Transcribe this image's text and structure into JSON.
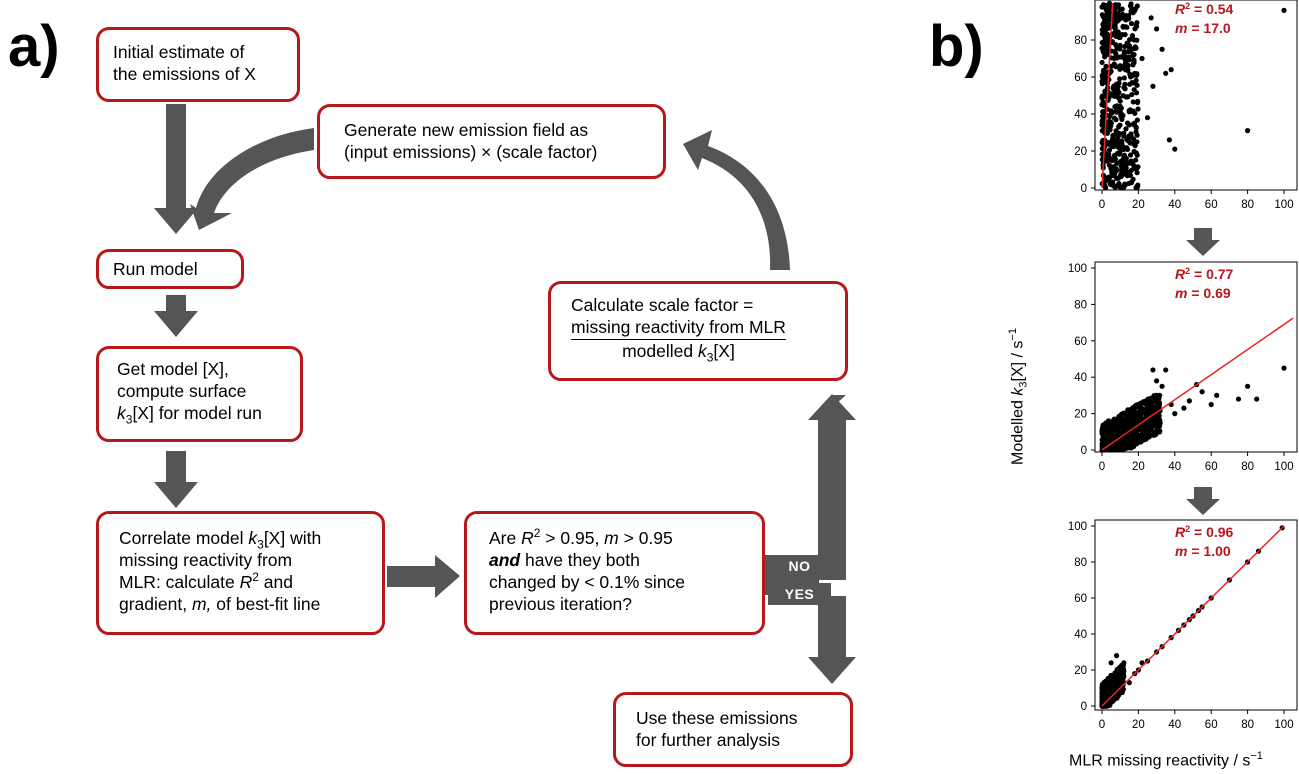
{
  "panels": {
    "a": "a)",
    "b": "b)"
  },
  "colors": {
    "box_border": "#b8171b",
    "arrow_fill": "#555555",
    "fit_line": "#e8261e",
    "points": "#000000"
  },
  "flowchart": {
    "initial": [
      "Initial estimate of",
      "the emissions of X"
    ],
    "generate": [
      "Generate new emission field as",
      "(input emissions) × (scale factor)"
    ],
    "run": "Run model",
    "getmodel": {
      "l1": "Get model [X],",
      "l2": "compute surface",
      "l3_k": "k",
      "l3_sub": "3",
      "l3_rest": "[X] for model run"
    },
    "correlate": {
      "l1_a": "Correlate model ",
      "l1_k": "k",
      "l1_sub": "3",
      "l1_b": "[X] with",
      "l2": "missing reactivity from",
      "l3_a": "MLR: calculate ",
      "l3_R": "R",
      "l3_sup": "2",
      "l3_b": " and",
      "l4_a": "gradient, ",
      "l4_m": "m,",
      "l4_b": " of best-fit line"
    },
    "are": {
      "l1_a": "Are ",
      "l1_R": "R",
      "l1_sup": "2",
      "l1_b": " > 0.95, ",
      "l1_m": "m",
      "l1_c": " > 0.95",
      "l2_and": "and",
      "l2_b": " have they both",
      "l3": "changed by < 0.1% since",
      "l4": "previous iteration?"
    },
    "no": "NO",
    "yes": "YES",
    "scale": {
      "l1": "Calculate scale factor =",
      "num": "missing reactivity from MLR",
      "den_a": "modelled ",
      "den_k": "k",
      "den_sub": "3",
      "den_b": "[X]"
    },
    "use": [
      "Use these emissions",
      "for further analysis"
    ]
  },
  "plots": {
    "y_ticks": [
      "0",
      "20",
      "40",
      "60",
      "80",
      "100"
    ],
    "x_ticks": [
      "0",
      "20",
      "40",
      "60",
      "80",
      "100"
    ],
    "ylabel": {
      "a": "Modelled ",
      "k": "k",
      "sub": "3",
      "b": "[X] / s",
      "sup": "−1"
    },
    "xlabel": {
      "a": "MLR missing reactivity / s",
      "sup": "−1"
    },
    "stats": [
      {
        "R": "R",
        "sup": "2",
        "r_val": " = 0.54",
        "m": "m",
        "m_val": "  = 17.0"
      },
      {
        "R": "R",
        "sup": "2",
        "r_val": " = 0.77",
        "m": "m",
        "m_val": "  = 0.69"
      },
      {
        "R": "R",
        "sup": "2",
        "r_val": " = 0.96",
        "m": "m",
        "m_val": "  = 1.00"
      }
    ]
  },
  "chart_data": [
    {
      "type": "scatter",
      "xlim": [
        0,
        100
      ],
      "ylim": [
        0,
        100
      ],
      "fit_slope": 17.0,
      "r2": 0.54,
      "cloud": {
        "x_range": [
          0,
          20
        ],
        "y_range": [
          0,
          100
        ],
        "count": 520
      },
      "outliers": [
        [
          80,
          31
        ],
        [
          37,
          26
        ],
        [
          40,
          21
        ],
        [
          28,
          55
        ],
        [
          35,
          62
        ],
        [
          33,
          75
        ],
        [
          30,
          86
        ],
        [
          100,
          96
        ],
        [
          27,
          92
        ],
        [
          22,
          70
        ],
        [
          25,
          38
        ],
        [
          38,
          64
        ]
      ]
    },
    {
      "type": "scatter",
      "xlim": [
        0,
        100
      ],
      "ylim": [
        0,
        100
      ],
      "fit_slope": 0.69,
      "r2": 0.77,
      "cloud": {
        "x_range": [
          0,
          32
        ],
        "y_range": [
          0,
          30
        ],
        "count": 650
      },
      "outliers": [
        [
          100,
          45
        ],
        [
          80,
          35
        ],
        [
          75,
          28
        ],
        [
          85,
          28
        ],
        [
          63,
          30
        ],
        [
          55,
          32
        ],
        [
          48,
          27
        ],
        [
          45,
          23
        ],
        [
          40,
          20
        ],
        [
          38,
          25
        ],
        [
          35,
          44
        ],
        [
          33,
          35
        ],
        [
          30,
          38
        ],
        [
          28,
          44
        ],
        [
          52,
          36
        ],
        [
          60,
          25
        ]
      ]
    },
    {
      "type": "scatter",
      "xlim": [
        0,
        100
      ],
      "ylim": [
        0,
        100
      ],
      "fit_slope": 1.0,
      "r2": 0.96,
      "cloud": {
        "x_range": [
          0,
          12
        ],
        "y_range": [
          0,
          24
        ],
        "count": 520
      },
      "diagonal_points": [
        20,
        25,
        30,
        33,
        38,
        42,
        45,
        48,
        50,
        53,
        55,
        60,
        70,
        80,
        86,
        99
      ],
      "outliers": [
        [
          8,
          28
        ],
        [
          5,
          24
        ],
        [
          12,
          24
        ],
        [
          15,
          13
        ],
        [
          18,
          18
        ],
        [
          22,
          24
        ]
      ]
    }
  ]
}
